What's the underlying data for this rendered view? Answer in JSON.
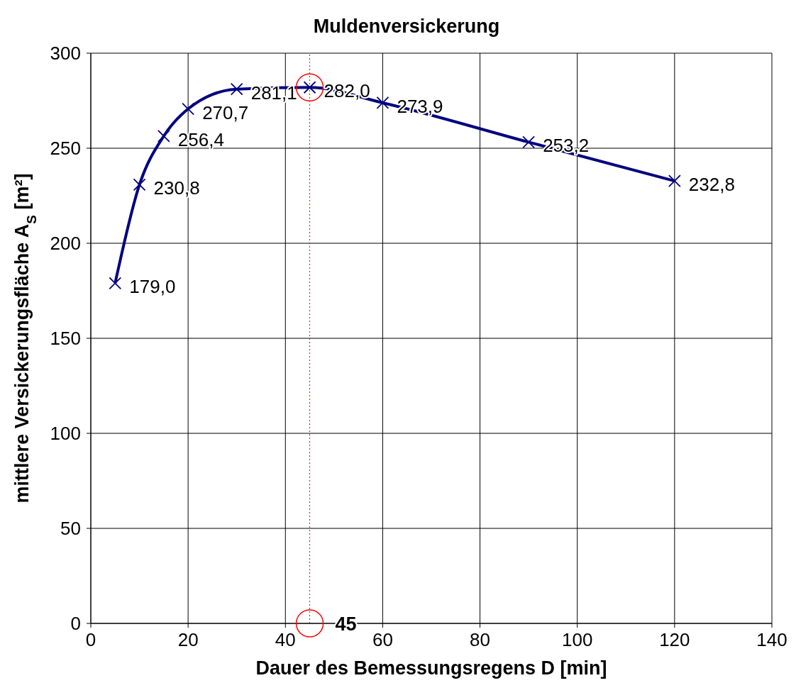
{
  "chart_data": {
    "type": "line",
    "title": "Muldenversickerung",
    "xlabel": "Dauer des Bemessungsregens  D [min]",
    "ylabel": "mittlere Versickerungsfläche A$_{S}$ [m²]",
    "x": [
      5,
      10,
      15,
      20,
      30,
      45,
      60,
      90,
      120
    ],
    "series": [
      {
        "color": "#000080",
        "values": [
          179.0,
          230.8,
          256.4,
          270.7,
          281.1,
          282.0,
          273.9,
          253.2,
          232.8
        ],
        "value_labels": [
          "179,0",
          "230,8",
          "256,4",
          "270,7",
          "281,1",
          "282,0",
          "273,9",
          "253,2",
          "232,8"
        ]
      }
    ],
    "xlim": [
      0,
      140
    ],
    "xticks": [
      0,
      20,
      40,
      60,
      80,
      100,
      120,
      140
    ],
    "ylim": [
      0,
      300
    ],
    "yticks": [
      0,
      50,
      100,
      150,
      200,
      250,
      300
    ],
    "grid": true,
    "marker": "cross",
    "line_style": "solid",
    "ref_lines": [
      {
        "axis": "x",
        "value": 45,
        "color": "#ff0000",
        "line_style": "dotted"
      }
    ],
    "annotations": [
      {
        "text": "45",
        "x": 45,
        "y": 0
      }
    ]
  }
}
